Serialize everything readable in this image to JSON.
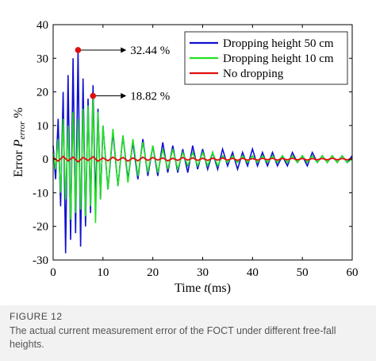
{
  "figure": {
    "caption_title": "FIGURE 12",
    "caption_text": "The actual current measurement error of the FOCT under different free-fall heights."
  },
  "chart_data": {
    "type": "line",
    "xlabel_main": "Time ",
    "xlabel_var": "t",
    "xlabel_unit": "(ms)",
    "ylabel_main": "Error ",
    "ylabel_var": "P",
    "ylabel_sub": "error",
    "ylabel_unit": " %",
    "xlim": [
      0,
      60
    ],
    "ylim": [
      -30,
      40
    ],
    "xticks": [
      0,
      10,
      20,
      30,
      40,
      50,
      60
    ],
    "yticks": [
      -30,
      -20,
      -10,
      0,
      10,
      20,
      30,
      40
    ],
    "grid": false,
    "legend_position": "top-right",
    "series": [
      {
        "name": "Dropping height 50 cm",
        "color": "#1010d0",
        "x": [
          0,
          0.5,
          1,
          1.5,
          2,
          2.5,
          3,
          3.5,
          4,
          4.5,
          5,
          5.5,
          6,
          6.5,
          7,
          7.5,
          8,
          8.5,
          9,
          9.5,
          10,
          11,
          12,
          13,
          14,
          15,
          16,
          17,
          18,
          19,
          20,
          21,
          22,
          23,
          24,
          25,
          26,
          27,
          28,
          29,
          30,
          31,
          32,
          33,
          34,
          35,
          36,
          37,
          38,
          39,
          40,
          41,
          42,
          43,
          44,
          45,
          46,
          47,
          48,
          49,
          50,
          51,
          52,
          53,
          54,
          55,
          56,
          57,
          58,
          59,
          60
        ],
        "y": [
          4,
          -6,
          12,
          -14,
          20,
          -28,
          25,
          -24,
          30,
          -22,
          32.44,
          -26,
          24,
          -20,
          18,
          -16,
          22,
          -14,
          15,
          -12,
          10,
          -9,
          8,
          -8,
          7,
          -6,
          5,
          -6,
          6,
          -5,
          4,
          -5,
          5,
          -4,
          4,
          -4,
          3,
          -4,
          4,
          -3,
          3,
          -3,
          2,
          -3,
          3,
          -2,
          2,
          -3,
          2,
          -2,
          3,
          -2,
          2,
          -2,
          2,
          -2,
          1,
          -2,
          2,
          -1,
          1,
          -2,
          2,
          -1,
          1,
          -1,
          1,
          -1,
          1,
          -1,
          1
        ]
      },
      {
        "name": "Dropping height 10 cm",
        "color": "#22e022",
        "x": [
          0,
          0.5,
          1,
          1.5,
          2,
          2.5,
          3,
          3.5,
          4,
          4.5,
          5,
          5.5,
          6,
          6.5,
          7,
          7.5,
          8,
          8.5,
          9,
          9.5,
          10,
          11,
          12,
          13,
          14,
          15,
          16,
          17,
          18,
          19,
          20,
          21,
          22,
          23,
          24,
          25,
          26,
          27,
          28,
          29,
          30,
          31,
          32,
          33,
          34,
          35,
          36,
          37,
          38,
          39,
          40,
          41,
          42,
          43,
          44,
          45,
          46,
          47,
          48,
          49,
          50,
          51,
          52,
          53,
          54,
          55,
          56,
          57,
          58,
          59,
          60
        ],
        "y": [
          2,
          -3,
          6,
          -10,
          12,
          -12,
          10,
          -18,
          14,
          -16,
          12,
          -15,
          15,
          -17,
          16,
          -14,
          18.82,
          -19,
          14,
          -12,
          10,
          -9,
          9,
          -8,
          7,
          -7,
          6,
          -5,
          5,
          -4,
          4,
          -4,
          3,
          -3,
          3,
          -3,
          2,
          -2,
          2,
          -2,
          2,
          -2,
          2,
          -2,
          1,
          -1,
          1,
          -1,
          1,
          -1,
          1,
          -1,
          1,
          -1,
          1,
          -1,
          1,
          -1,
          1,
          -1,
          1,
          -1,
          1,
          -1,
          1,
          -1,
          1,
          -1,
          1,
          -1,
          0
        ]
      },
      {
        "name": "No dropping",
        "color": "#e01010",
        "x": [
          0,
          1,
          2,
          3,
          4,
          5,
          6,
          7,
          8,
          9,
          10,
          11,
          12,
          13,
          14,
          15,
          16,
          17,
          18,
          19,
          20,
          21,
          22,
          23,
          24,
          25,
          26,
          27,
          28,
          29,
          30,
          31,
          32,
          33,
          34,
          35,
          36,
          37,
          38,
          39,
          40,
          41,
          42,
          43,
          44,
          45,
          46,
          47,
          48,
          49,
          50,
          51,
          52,
          53,
          54,
          55,
          56,
          57,
          58,
          59,
          60
        ],
        "y": [
          0.5,
          -0.6,
          0.8,
          -0.5,
          0.6,
          -0.8,
          0.5,
          -0.4,
          0.7,
          -0.6,
          0.4,
          -0.5,
          0.6,
          -0.4,
          0.5,
          -0.6,
          0.4,
          -0.5,
          0.6,
          -0.4,
          0.5,
          -0.3,
          0.4,
          -0.5,
          0.3,
          -0.4,
          0.5,
          -0.3,
          0.4,
          -0.4,
          0.3,
          -0.4,
          0.3,
          -0.3,
          0.4,
          -0.3,
          0.3,
          -0.4,
          0.3,
          -0.3,
          0.2,
          -0.3,
          0.3,
          -0.2,
          0.3,
          -0.3,
          0.2,
          -0.2,
          0.3,
          -0.2,
          0.2,
          -0.3,
          0.2,
          -0.2,
          0.2,
          -0.2,
          0.3,
          -0.2,
          0.2,
          -0.2,
          0.2
        ]
      }
    ],
    "annotations": [
      {
        "label": "32.44 %",
        "x": 5,
        "y": 32.44,
        "text_x": 15
      },
      {
        "label": "18.82 %",
        "x": 8,
        "y": 18.82,
        "text_x": 15
      }
    ]
  }
}
